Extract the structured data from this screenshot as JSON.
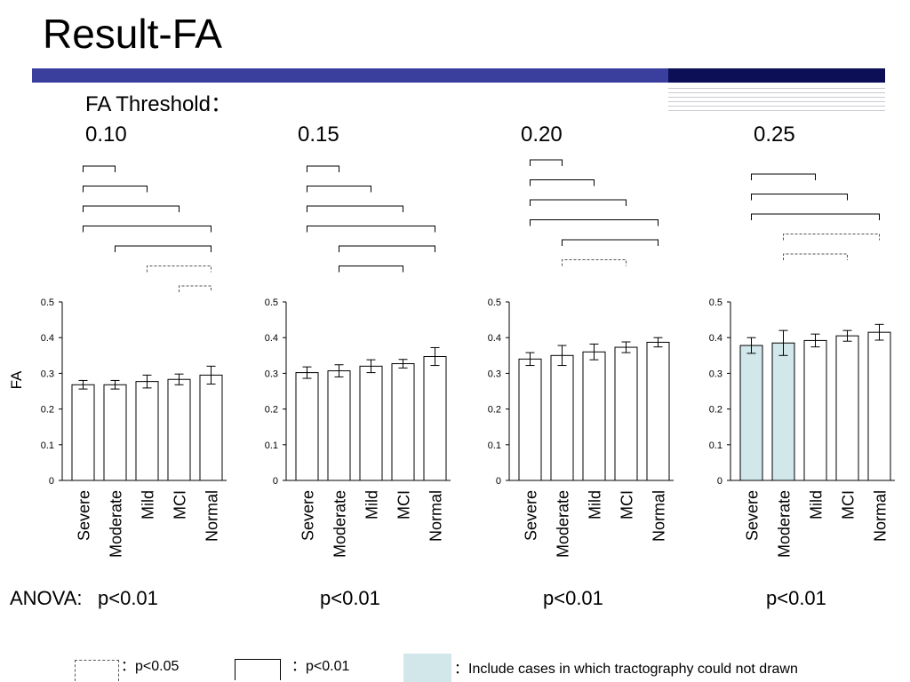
{
  "slide": {
    "title": "Result-FA",
    "threshold_label": "FA Threshold：",
    "anova_label": "ANOVA:",
    "ylabel": "FA"
  },
  "legend": {
    "p05": "：p<0.05",
    "p01": "：p<0.01",
    "shaded": "：Include cases in which tractography could not drawn"
  },
  "colors": {
    "bar_fill": "#ffffff",
    "bar_shaded": "#d2e7ea",
    "accent_bar": "#3a3f9e",
    "accent_dark": "#0c0f55"
  },
  "chart_data": [
    {
      "type": "bar",
      "threshold": "0.10",
      "pvalue": "p<0.01",
      "categories": [
        "Severe",
        "Moderate",
        "Mild",
        "MCI",
        "Normal"
      ],
      "values": [
        0.268,
        0.268,
        0.277,
        0.283,
        0.295
      ],
      "errors": [
        0.012,
        0.012,
        0.018,
        0.015,
        0.025
      ],
      "shaded": [
        false,
        false,
        false,
        false,
        false
      ],
      "ylim": [
        0,
        0.5
      ],
      "yticks": [
        "0",
        "0.1",
        "0.2",
        "0.3",
        "0.4",
        "0.5"
      ],
      "comparisons": [
        {
          "from": 0,
          "to": 1,
          "sig": "p<0.01"
        },
        {
          "from": 0,
          "to": 2,
          "sig": "p<0.01"
        },
        {
          "from": 0,
          "to": 3,
          "sig": "p<0.01"
        },
        {
          "from": 0,
          "to": 4,
          "sig": "p<0.01"
        },
        {
          "from": 1,
          "to": 4,
          "sig": "p<0.01"
        },
        {
          "from": 2,
          "to": 4,
          "sig": "p<0.05"
        },
        {
          "from": 3,
          "to": 4,
          "sig": "p<0.05"
        }
      ]
    },
    {
      "type": "bar",
      "threshold": "0.15",
      "pvalue": "p<0.01",
      "categories": [
        "Severe",
        "Moderate",
        "Mild",
        "MCI",
        "Normal"
      ],
      "values": [
        0.302,
        0.307,
        0.32,
        0.327,
        0.347
      ],
      "errors": [
        0.016,
        0.017,
        0.018,
        0.012,
        0.025
      ],
      "shaded": [
        false,
        false,
        false,
        false,
        false
      ],
      "ylim": [
        0,
        0.5
      ],
      "yticks": [
        "0",
        "0.1",
        "0.2",
        "0.3",
        "0.4",
        "0.5"
      ],
      "comparisons": [
        {
          "from": 0,
          "to": 1,
          "sig": "p<0.01"
        },
        {
          "from": 0,
          "to": 2,
          "sig": "p<0.01"
        },
        {
          "from": 0,
          "to": 3,
          "sig": "p<0.01"
        },
        {
          "from": 0,
          "to": 4,
          "sig": "p<0.01"
        },
        {
          "from": 1,
          "to": 4,
          "sig": "p<0.01"
        },
        {
          "from": 1,
          "to": 3,
          "sig": "p<0.01"
        }
      ]
    },
    {
      "type": "bar",
      "threshold": "0.20",
      "pvalue": "p<0.01",
      "categories": [
        "Severe",
        "Moderate",
        "Mild",
        "MCI",
        "Normal"
      ],
      "values": [
        0.34,
        0.35,
        0.36,
        0.373,
        0.387
      ],
      "errors": [
        0.018,
        0.028,
        0.022,
        0.015,
        0.013
      ],
      "shaded": [
        false,
        false,
        false,
        false,
        false
      ],
      "ylim": [
        0,
        0.5
      ],
      "yticks": [
        "0",
        "0.1",
        "0.2",
        "0.3",
        "0.4",
        "0.5"
      ],
      "comparisons": [
        {
          "from": 0,
          "to": 1,
          "sig": "p<0.01"
        },
        {
          "from": 0,
          "to": 2,
          "sig": "p<0.01"
        },
        {
          "from": 0,
          "to": 3,
          "sig": "p<0.01"
        },
        {
          "from": 0,
          "to": 4,
          "sig": "p<0.01"
        },
        {
          "from": 1,
          "to": 4,
          "sig": "p<0.01"
        },
        {
          "from": 1,
          "to": 3,
          "sig": "p<0.05"
        }
      ]
    },
    {
      "type": "bar",
      "threshold": "0.25",
      "pvalue": "p<0.01",
      "categories": [
        "Severe",
        "Moderate",
        "Mild",
        "MCI",
        "Normal"
      ],
      "values": [
        0.378,
        0.385,
        0.392,
        0.405,
        0.415
      ],
      "errors": [
        0.022,
        0.035,
        0.018,
        0.015,
        0.022
      ],
      "shaded": [
        true,
        true,
        false,
        false,
        false
      ],
      "ylim": [
        0,
        0.5
      ],
      "yticks": [
        "0",
        "0.1",
        "0.2",
        "0.3",
        "0.4",
        "0.5"
      ],
      "comparisons": [
        {
          "from": 0,
          "to": 2,
          "sig": "p<0.01"
        },
        {
          "from": 0,
          "to": 3,
          "sig": "p<0.01"
        },
        {
          "from": 0,
          "to": 4,
          "sig": "p<0.01"
        },
        {
          "from": 1,
          "to": 4,
          "sig": "p<0.05"
        },
        {
          "from": 1,
          "to": 3,
          "sig": "p<0.05"
        }
      ]
    }
  ]
}
